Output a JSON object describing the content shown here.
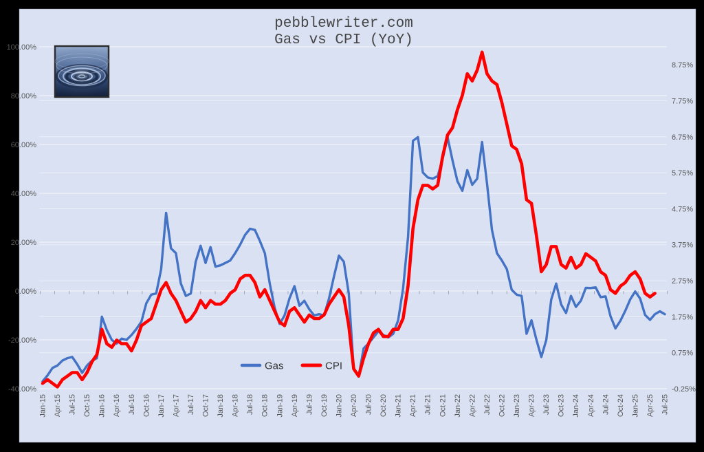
{
  "page": {
    "background_color": "#000000",
    "chart_background_color": "#d9e1f2"
  },
  "title": {
    "line1": "pebblewriter.com",
    "line2": "Gas vs CPI (YoY)"
  },
  "logo": {
    "name": "water-ripple-logo"
  },
  "legend": [
    {
      "label": "Gas",
      "color": "#4472C4"
    },
    {
      "label": "CPI",
      "color": "#FF0000"
    }
  ],
  "chart_data": {
    "type": "line",
    "title": "pebblewriter.com — Gas vs CPI (YoY)",
    "grid": true,
    "legend_position": "bottom-center-inside",
    "x_frequency": "monthly",
    "x_start": "Jan-15",
    "x_end": "Jul-25",
    "x_tick_every_months": 3,
    "x_tick_labels": [
      "Jan-15",
      "Apr-15",
      "Jul-15",
      "Oct-15",
      "Jan-16",
      "Apr-16",
      "Jul-16",
      "Oct-16",
      "Jan-17",
      "Apr-17",
      "Jul-17",
      "Oct-17",
      "Jan-18",
      "Apr-18",
      "Jul-18",
      "Oct-18",
      "Jan-19",
      "Apr-19",
      "Jul-19",
      "Oct-19",
      "Jan-20",
      "Apr-20",
      "Jul-20",
      "Oct-20",
      "Jan-21",
      "Apr-21",
      "Jul-21",
      "Oct-21",
      "Jan-22",
      "Apr-22",
      "Jul-22",
      "Oct-22",
      "Jan-23",
      "Apr-23",
      "Jul-23",
      "Oct-23",
      "Jan-24",
      "Apr-24",
      "Jul-24",
      "Oct-24",
      "Jan-25",
      "Apr-25",
      "Jul-25"
    ],
    "left_axis": {
      "series": "Gas",
      "min": -40,
      "max": 100,
      "major": 20,
      "tick_labels": [
        "100.00%",
        "80.00%",
        "60.00%",
        "40.00%",
        "20.00%",
        "0.00%",
        "-20.00%",
        "-40.00%"
      ]
    },
    "right_axis": {
      "series": "CPI",
      "min": -0.25,
      "max": 9.25,
      "major": 1,
      "tick_labels": [
        "8.75%",
        "7.75%",
        "6.75%",
        "5.75%",
        "4.75%",
        "3.75%",
        "2.75%",
        "1.75%",
        "0.75%",
        "-0.25%"
      ]
    },
    "series": [
      {
        "name": "Gas",
        "axis": "left",
        "color": "#4472C4",
        "unit": "%",
        "values": [
          -37,
          -34.5,
          -31.5,
          -30.5,
          -28.5,
          -27.5,
          -27,
          -30,
          -33.5,
          -30.5,
          -28.5,
          -27.5,
          -10.5,
          -16,
          -20,
          -21.5,
          -19.5,
          -20,
          -18,
          -15.5,
          -12.5,
          -5,
          -1.5,
          -1,
          9,
          32,
          17.5,
          15.5,
          3,
          -2,
          -1,
          12,
          18.5,
          11.5,
          18,
          10,
          10.5,
          11.5,
          12.5,
          15.5,
          19,
          23,
          25.5,
          25,
          20.5,
          15.5,
          3,
          -7,
          -13.5,
          -10,
          -3,
          2,
          -6,
          -4,
          -7.5,
          -10,
          -9.5,
          -10,
          -3,
          6,
          14.5,
          12,
          -1,
          -32,
          -35,
          -23.5,
          -21.5,
          -19,
          -16.5,
          -18,
          -19,
          -17.5,
          -12,
          1,
          22,
          61.5,
          63,
          48.5,
          46.5,
          46,
          47,
          54,
          63,
          53.5,
          45,
          41,
          49.5,
          43.5,
          46,
          61,
          44,
          25,
          15.5,
          12.5,
          9,
          0.5,
          -1.5,
          -2,
          -17.5,
          -12,
          -20,
          -27,
          -20,
          -3.5,
          3,
          -5.5,
          -9,
          -2,
          -6.5,
          -4,
          1.3,
          1.2,
          1.5,
          -2.5,
          -2.2,
          -10.3,
          -15.3,
          -12.2,
          -8.1,
          -3.4,
          -0.2,
          -3.1,
          -9.8,
          -11.8,
          -9.5,
          -8.3,
          -9.5
        ]
      },
      {
        "name": "CPI",
        "axis": "right",
        "color": "#FF0000",
        "unit": "%",
        "values": [
          -0.1,
          0.0,
          -0.1,
          -0.2,
          0.0,
          0.1,
          0.2,
          0.2,
          0.0,
          0.2,
          0.5,
          0.7,
          1.4,
          1.0,
          0.9,
          1.1,
          1.0,
          1.0,
          0.8,
          1.1,
          1.5,
          1.6,
          1.7,
          2.1,
          2.5,
          2.7,
          2.4,
          2.2,
          1.9,
          1.6,
          1.7,
          1.9,
          2.2,
          2.0,
          2.2,
          2.1,
          2.1,
          2.2,
          2.4,
          2.5,
          2.8,
          2.9,
          2.9,
          2.7,
          2.3,
          2.5,
          2.2,
          1.9,
          1.6,
          1.5,
          1.9,
          2.0,
          1.8,
          1.6,
          1.8,
          1.7,
          1.7,
          1.8,
          2.1,
          2.3,
          2.5,
          2.3,
          1.5,
          0.3,
          0.1,
          0.6,
          1.0,
          1.3,
          1.4,
          1.2,
          1.2,
          1.4,
          1.4,
          1.7,
          2.6,
          4.2,
          5.0,
          5.4,
          5.4,
          5.3,
          5.4,
          6.2,
          6.8,
          7.0,
          7.5,
          7.9,
          8.5,
          8.3,
          8.6,
          9.1,
          8.5,
          8.3,
          8.2,
          7.7,
          7.1,
          6.5,
          6.4,
          6.0,
          5.0,
          4.9,
          4.0,
          3.0,
          3.2,
          3.7,
          3.7,
          3.2,
          3.1,
          3.4,
          3.1,
          3.2,
          3.5,
          3.4,
          3.3,
          3.0,
          2.9,
          2.5,
          2.4,
          2.6,
          2.7,
          2.9,
          3.0,
          2.8,
          2.4,
          2.3,
          2.4
        ]
      }
    ]
  }
}
